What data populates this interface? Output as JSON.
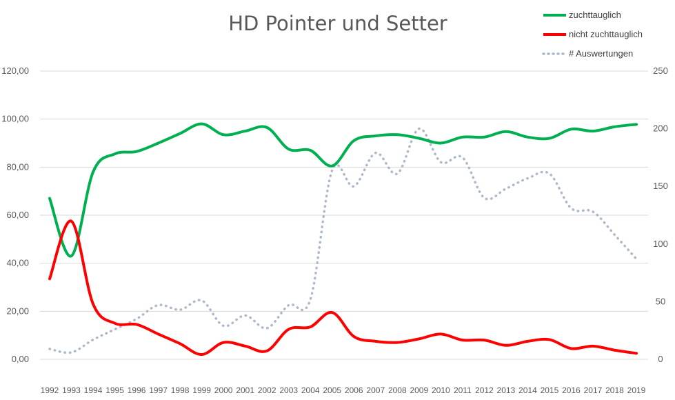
{
  "chart_data": {
    "type": "line",
    "title": "HD Pointer und Setter",
    "x": [
      "1992",
      "1993",
      "1994",
      "1995",
      "1996",
      "1997",
      "1998",
      "1999",
      "2000",
      "2001",
      "2002",
      "2003",
      "2004",
      "2005",
      "2006",
      "2007",
      "2008",
      "2009",
      "2010",
      "2011",
      "2012",
      "2013",
      "2014",
      "2015",
      "2016",
      "2017",
      "2018",
      "2019"
    ],
    "y_left": {
      "min": 0,
      "max": 120,
      "step": 20,
      "tick_labels": [
        "0,00",
        "20,00",
        "40,00",
        "60,00",
        "80,00",
        "100,00",
        "120,00"
      ]
    },
    "y_right": {
      "min": 0,
      "max": 250,
      "step": 50,
      "tick_labels": [
        "0",
        "50",
        "100",
        "150",
        "200",
        "250"
      ]
    },
    "grid": true,
    "legend_position": "top-right",
    "series": [
      {
        "name": "zuchttauglich",
        "axis": "left",
        "color": "#00b050",
        "style": "solid",
        "values": [
          67,
          43,
          78,
          85.5,
          86.5,
          90,
          94,
          98,
          93.5,
          95,
          96.5,
          87.5,
          87,
          80.5,
          91,
          93,
          93.5,
          92,
          90,
          92.5,
          92.5,
          94.8,
          92.5,
          92,
          95.8,
          95,
          96.8,
          97.8
        ]
      },
      {
        "name": "nicht zuchttauglich",
        "axis": "left",
        "color": "#ff0000",
        "style": "solid",
        "values": [
          33.5,
          57.5,
          23,
          15,
          14.5,
          10.5,
          6.5,
          2,
          7,
          5.5,
          3.5,
          12.5,
          13.5,
          19.5,
          9.5,
          7.5,
          7,
          8.5,
          10.5,
          8,
          8,
          5.8,
          7.5,
          8.2,
          4.5,
          5.5,
          3.8,
          2.5
        ]
      },
      {
        "name": "# Auswertungen",
        "axis": "right",
        "color": "#adb9ca",
        "style": "dotted",
        "values": [
          9,
          6,
          17,
          26,
          35,
          47,
          43,
          51,
          29,
          38,
          27,
          47,
          52,
          164,
          150,
          179,
          161,
          200,
          171,
          175,
          140,
          148,
          157,
          161,
          131,
          128,
          108,
          87
        ]
      }
    ]
  }
}
